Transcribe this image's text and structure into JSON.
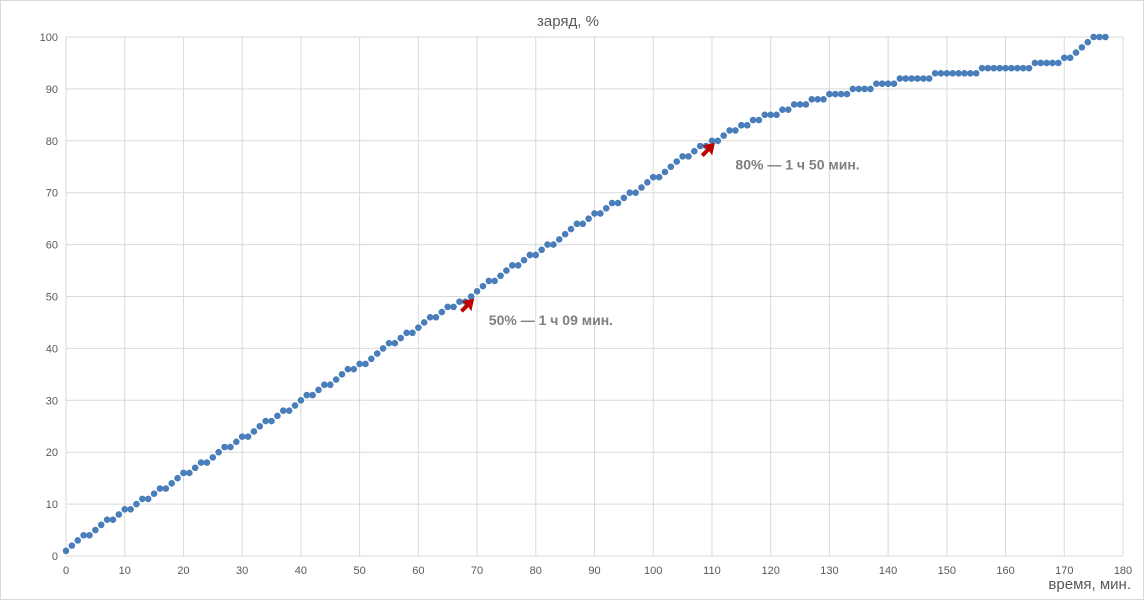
{
  "chart_data": {
    "type": "scatter",
    "title": "",
    "ylabel": "заряд, %",
    "xlabel": "время, мин.",
    "xlim": [
      0,
      180
    ],
    "ylim": [
      0,
      100
    ],
    "xticks": [
      0,
      10,
      20,
      30,
      40,
      50,
      60,
      70,
      80,
      90,
      100,
      110,
      120,
      130,
      140,
      150,
      160,
      170,
      180
    ],
    "yticks": [
      0,
      10,
      20,
      30,
      40,
      50,
      60,
      70,
      80,
      90,
      100
    ],
    "grid": true,
    "series": [
      {
        "color": "#4a7ebb",
        "x": [
          0,
          1,
          2,
          3,
          4,
          5,
          6,
          7,
          8,
          9,
          10,
          11,
          12,
          13,
          14,
          15,
          16,
          17,
          18,
          19,
          20,
          21,
          22,
          23,
          24,
          25,
          26,
          27,
          28,
          29,
          30,
          31,
          32,
          33,
          34,
          35,
          36,
          37,
          38,
          39,
          40,
          41,
          42,
          43,
          44,
          45,
          46,
          47,
          48,
          49,
          50,
          51,
          52,
          53,
          54,
          55,
          56,
          57,
          58,
          59,
          60,
          61,
          62,
          63,
          64,
          65,
          66,
          67,
          68,
          69,
          70,
          71,
          72,
          73,
          74,
          75,
          76,
          77,
          78,
          79,
          80,
          81,
          82,
          83,
          84,
          85,
          86,
          87,
          88,
          89,
          90,
          91,
          92,
          93,
          94,
          95,
          96,
          97,
          98,
          99,
          100,
          101,
          102,
          103,
          104,
          105,
          106,
          107,
          108,
          109,
          110,
          111,
          112,
          113,
          114,
          115,
          116,
          117,
          118,
          119,
          120,
          121,
          122,
          123,
          124,
          125,
          126,
          127,
          128,
          129,
          130,
          131,
          132,
          133,
          134,
          135,
          136,
          137,
          138,
          139,
          140,
          141,
          142,
          143,
          144,
          145,
          146,
          147,
          148,
          149,
          150,
          151,
          152,
          153,
          154,
          155,
          156,
          157,
          158,
          159,
          160,
          161,
          162,
          163,
          164,
          165,
          166,
          167,
          168,
          169,
          170,
          171,
          172,
          173,
          174,
          175,
          176,
          177
        ],
        "y": [
          1,
          2,
          3,
          4,
          4,
          5,
          6,
          7,
          7,
          8,
          9,
          9,
          10,
          11,
          11,
          12,
          13,
          13,
          14,
          15,
          16,
          16,
          17,
          18,
          18,
          19,
          20,
          21,
          21,
          22,
          23,
          23,
          24,
          25,
          26,
          26,
          27,
          28,
          28,
          29,
          30,
          31,
          31,
          32,
          33,
          33,
          34,
          35,
          36,
          36,
          37,
          37,
          38,
          39,
          40,
          41,
          41,
          42,
          43,
          43,
          44,
          45,
          46,
          46,
          47,
          48,
          48,
          49,
          49,
          50,
          51,
          52,
          53,
          53,
          54,
          55,
          56,
          56,
          57,
          58,
          58,
          59,
          60,
          60,
          61,
          62,
          63,
          64,
          64,
          65,
          66,
          66,
          67,
          68,
          68,
          69,
          70,
          70,
          71,
          72,
          73,
          73,
          74,
          75,
          76,
          77,
          77,
          78,
          79,
          79,
          80,
          80,
          81,
          82,
          82,
          83,
          83,
          84,
          84,
          85,
          85,
          85,
          86,
          86,
          87,
          87,
          87,
          88,
          88,
          88,
          89,
          89,
          89,
          89,
          90,
          90,
          90,
          90,
          91,
          91,
          91,
          91,
          92,
          92,
          92,
          92,
          92,
          92,
          93,
          93,
          93,
          93,
          93,
          93,
          93,
          93,
          94,
          94,
          94,
          94,
          94,
          94,
          94,
          94,
          94,
          95,
          95,
          95,
          95,
          95,
          96,
          96,
          97,
          98,
          99,
          100,
          100,
          100
        ]
      }
    ],
    "annotations": [
      {
        "text": "50% — 1 ч 09 мин.",
        "point_x": 69,
        "point_y": 50,
        "text_x": 72,
        "text_y": 44.5,
        "arrow_color": "#c00000"
      },
      {
        "text": "80% — 1 ч 50 мин.",
        "point_x": 110,
        "point_y": 80,
        "text_x": 114,
        "text_y": 74.5,
        "arrow_color": "#c00000"
      }
    ]
  }
}
